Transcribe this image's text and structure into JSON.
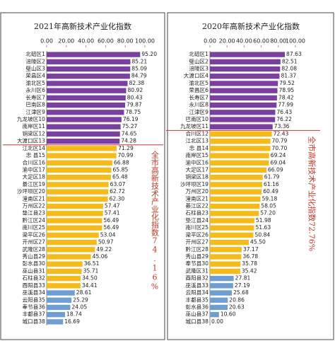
{
  "chart_data": [
    {
      "type": "bar",
      "orientation": "horizontal",
      "title": "2021年高新技术产业化指数",
      "categories": [
        "北碚区1",
        "涪陵区2",
        "璧山区3",
        "荣昌区4",
        "渝北区5",
        "永川区6",
        "长寿区7",
        "巴南区8",
        "江津区9",
        "九龙坡区10",
        "南岸区11",
        "铜梁区12",
        "大渡口区13",
        "江北区14",
        "忠 县15",
        "合川区16",
        "渝中区17",
        "大足区18",
        "綦江区19",
        "沙坪坝区20",
        "潼南区21",
        "万州区22",
        "垫江县23",
        "黔江区24",
        "南川区25",
        "梁平区26",
        "开州区27",
        "武隆区28",
        "秀山县29",
        "彭水县30",
        "巫山县31",
        "石柱县32",
        "酉阳县33",
        "巫溪县34",
        "云阳县35",
        "奉节县36",
        "丰都县37",
        "城口县38"
      ],
      "values": [
        95.2,
        85.21,
        85.09,
        84.79,
        82.38,
        80.92,
        80.43,
        79.87,
        78.75,
        76.19,
        75.27,
        74.65,
        74.28,
        71.29,
        70.99,
        66.88,
        65.85,
        65.48,
        63.07,
        62.72,
        62.3,
        57.47,
        57.41,
        56.49,
        56.49,
        53.04,
        50.97,
        49.22,
        45.06,
        36.51,
        35.71,
        34.5,
        34.41,
        28.61,
        25.29,
        24.05,
        18.74,
        16.69
      ],
      "value_labels": [
        "95.20",
        "85.21",
        "85.09",
        "84.79",
        "82.38",
        "80.92",
        "80.43",
        "79.87",
        "78.75",
        "76.19",
        "75.27",
        "74.65",
        "74.28",
        "71.29",
        "70.99",
        "66.88",
        "65.85",
        "65.48",
        "63.07",
        "62.72",
        "62.30",
        "57.47",
        "57.41",
        "56.49",
        "56.49",
        "53.04",
        "50.97",
        "49.22",
        "45.06",
        "36.51",
        "35.71",
        "34.50",
        "34.41",
        "28.61",
        "25.29",
        "24.05",
        "18.74",
        "16.69"
      ],
      "colors": [
        "#7b3fa0",
        "#7b3fa0",
        "#7b3fa0",
        "#7b3fa0",
        "#7b3fa0",
        "#7b3fa0",
        "#7b3fa0",
        "#7b3fa0",
        "#7b3fa0",
        "#7b3fa0",
        "#7b3fa0",
        "#7b3fa0",
        "#7b3fa0",
        "#f5bb1a",
        "#f5bb1a",
        "#f5bb1a",
        "#f5bb1a",
        "#f5bb1a",
        "#f5bb1a",
        "#f5bb1a",
        "#f5bb1a",
        "#f5bb1a",
        "#f5bb1a",
        "#f5bb1a",
        "#f5bb1a",
        "#f5bb1a",
        "#f5bb1a",
        "#f5bb1a",
        "#f5bb1a",
        "#f5bb1a",
        "#f5bb1a",
        "#f5bb1a",
        "#f5bb1a",
        "#6f9fd0",
        "#6f9fd0",
        "#6f9fd0",
        "#6f9fd0",
        "#6f9fd0"
      ],
      "xlim": [
        0,
        100
      ],
      "xticks": [
        {
          "value": 0,
          "label": "0.00"
        },
        {
          "value": 20,
          "label": "20.00"
        },
        {
          "value": 40,
          "label": "40.00"
        },
        {
          "value": 60,
          "label": "60.00"
        },
        {
          "value": 80,
          "label": "80.00"
        },
        {
          "value": 100,
          "label": "100.00"
        }
      ],
      "reference": {
        "value": 74.16,
        "label": "全市高新技术产业化指数74.16%",
        "color": "#c0392b",
        "orientation": "upright"
      }
    },
    {
      "type": "bar",
      "orientation": "horizontal",
      "title": "2020年高新技术产业化指数",
      "categories": [
        "北碚区1",
        "璧山区2",
        "涪陵区3",
        "大渡口区4",
        "渝北区5",
        "荣昌区6",
        "长寿区7",
        "永川区8",
        "江津区9",
        "巴南区10",
        "九龙坡区11",
        "合川区12",
        "江北区13",
        "忠 县14",
        "南岸区15",
        "渝中区16",
        "大足区17",
        "铜梁区18",
        "沙坪坝区19",
        "万州区20",
        "潼南区21",
        "綦江区22",
        "石柱县23",
        "垫江县24",
        "南川区25",
        "梁平区26",
        "开州区27",
        "黔江区28",
        "秀山县29",
        "奉节县30",
        "武隆区31",
        "酉阳县32",
        "巫溪县33",
        "云阳县34",
        "丰都县35",
        "彭水县36",
        "巫山县37",
        "城口县38"
      ],
      "values": [
        87.63,
        82.51,
        82.08,
        81.37,
        79.52,
        78.95,
        78.42,
        77.99,
        76.43,
        76.22,
        73.36,
        72.43,
        70.79,
        70.7,
        69.24,
        69.04,
        66.09,
        61.79,
        61.16,
        60.49,
        59.18,
        58.05,
        57.2,
        51.98,
        51.63,
        50.84,
        45.5,
        37.17,
        36.78,
        35.78,
        35.42,
        27.81,
        27.19,
        25.68,
        20.86,
        20.63,
        10.6,
        0
      ],
      "value_labels": [
        "87.63",
        "82.51",
        "82.08",
        "81.37",
        "79.52",
        "78.95",
        "78.42",
        "77.99",
        "76.43",
        "76.22",
        "73.36",
        "72.43",
        "70.79",
        "70.70",
        "69.24",
        "69.04",
        "66.09",
        "61.79",
        "61.16",
        "60.49",
        "59.18",
        "58.05",
        "57.20",
        "51.98",
        "51.63",
        "50.84",
        "45.50",
        "37.17",
        "36.78",
        "35.78",
        "35.42",
        "27.81",
        "27.19",
        "25.68",
        "20.86",
        "20.63",
        "10.60",
        "0.00"
      ],
      "colors": [
        "#7b3fa0",
        "#7b3fa0",
        "#7b3fa0",
        "#7b3fa0",
        "#7b3fa0",
        "#7b3fa0",
        "#7b3fa0",
        "#7b3fa0",
        "#7b3fa0",
        "#7b3fa0",
        "#7b3fa0",
        "#f5bb1a",
        "#f5bb1a",
        "#f5bb1a",
        "#f5bb1a",
        "#f5bb1a",
        "#f5bb1a",
        "#f5bb1a",
        "#f5bb1a",
        "#f5bb1a",
        "#f5bb1a",
        "#f5bb1a",
        "#f5bb1a",
        "#f5bb1a",
        "#f5bb1a",
        "#f5bb1a",
        "#f5bb1a",
        "#f5bb1a",
        "#f5bb1a",
        "#f5bb1a",
        "#f5bb1a",
        "#6f9fd0",
        "#6f9fd0",
        "#6f9fd0",
        "#6f9fd0",
        "#6f9fd0",
        "#6f9fd0",
        "#6f9fd0"
      ],
      "xlim": [
        0,
        100
      ],
      "xticks": [
        {
          "value": 0,
          "label": "0.00"
        },
        {
          "value": 20,
          "label": "20.00"
        },
        {
          "value": 40,
          "label": "40.00"
        },
        {
          "value": 60,
          "label": "60.00"
        },
        {
          "value": 80,
          "label": "80.00"
        },
        {
          "value": 100,
          "label": "100.00"
        }
      ],
      "reference": {
        "value": 72.76,
        "label": "全市高新技术产业化指数72.76%",
        "color": "#c0392b",
        "orientation": "sideways"
      }
    }
  ]
}
